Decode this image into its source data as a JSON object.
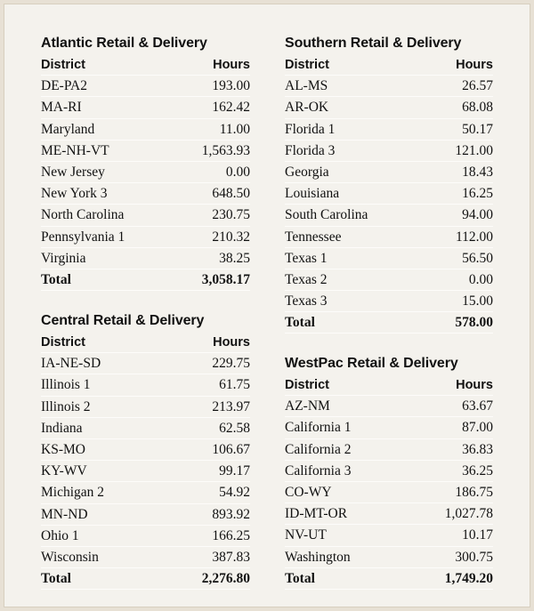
{
  "regions": [
    {
      "title": "Atlantic Retail & Delivery",
      "col_district": "District",
      "col_hours": "Hours",
      "rows": [
        {
          "district": "DE-PA2",
          "hours": "193.00"
        },
        {
          "district": "MA-RI",
          "hours": "162.42"
        },
        {
          "district": "Maryland",
          "hours": "11.00"
        },
        {
          "district": "ME-NH-VT",
          "hours": "1,563.93"
        },
        {
          "district": "New Jersey",
          "hours": "0.00"
        },
        {
          "district": "New York 3",
          "hours": "648.50"
        },
        {
          "district": "North Carolina",
          "hours": "230.75"
        },
        {
          "district": "Pennsylvania 1",
          "hours": "210.32"
        },
        {
          "district": "Virginia",
          "hours": "38.25"
        }
      ],
      "total_label": "Total",
      "total_hours": "3,058.17"
    },
    {
      "title": "Central Retail & Delivery",
      "col_district": "District",
      "col_hours": "Hours",
      "rows": [
        {
          "district": "IA-NE-SD",
          "hours": "229.75"
        },
        {
          "district": "Illinois 1",
          "hours": "61.75"
        },
        {
          "district": "Illinois 2",
          "hours": "213.97"
        },
        {
          "district": "Indiana",
          "hours": "62.58"
        },
        {
          "district": "KS-MO",
          "hours": "106.67"
        },
        {
          "district": "KY-WV",
          "hours": "99.17"
        },
        {
          "district": "Michigan 2",
          "hours": "54.92"
        },
        {
          "district": "MN-ND",
          "hours": "893.92"
        },
        {
          "district": "Ohio 1",
          "hours": "166.25"
        },
        {
          "district": "Wisconsin",
          "hours": "387.83"
        }
      ],
      "total_label": "Total",
      "total_hours": "2,276.80"
    },
    {
      "title": "Southern Retail & Delivery",
      "col_district": "District",
      "col_hours": "Hours",
      "rows": [
        {
          "district": "AL-MS",
          "hours": "26.57"
        },
        {
          "district": "AR-OK",
          "hours": "68.08"
        },
        {
          "district": "Florida 1",
          "hours": "50.17"
        },
        {
          "district": "Florida 3",
          "hours": "121.00"
        },
        {
          "district": "Georgia",
          "hours": "18.43"
        },
        {
          "district": "Louisiana",
          "hours": "16.25"
        },
        {
          "district": "South Carolina",
          "hours": "94.00"
        },
        {
          "district": "Tennessee",
          "hours": "112.00"
        },
        {
          "district": "Texas 1",
          "hours": "56.50"
        },
        {
          "district": "Texas 2",
          "hours": "0.00"
        },
        {
          "district": "Texas 3",
          "hours": "15.00"
        }
      ],
      "total_label": "Total",
      "total_hours": "578.00"
    },
    {
      "title": "WestPac Retail & Delivery",
      "col_district": "District",
      "col_hours": "Hours",
      "rows": [
        {
          "district": "AZ-NM",
          "hours": "63.67"
        },
        {
          "district": "California 1",
          "hours": "87.00"
        },
        {
          "district": "California 2",
          "hours": "36.83"
        },
        {
          "district": "California 3",
          "hours": "36.25"
        },
        {
          "district": "CO-WY",
          "hours": "186.75"
        },
        {
          "district": "ID-MT-OR",
          "hours": "1,027.78"
        },
        {
          "district": "NV-UT",
          "hours": "10.17"
        },
        {
          "district": "Washington",
          "hours": "300.75"
        }
      ],
      "total_label": "Total",
      "total_hours": "1,749.20"
    }
  ]
}
